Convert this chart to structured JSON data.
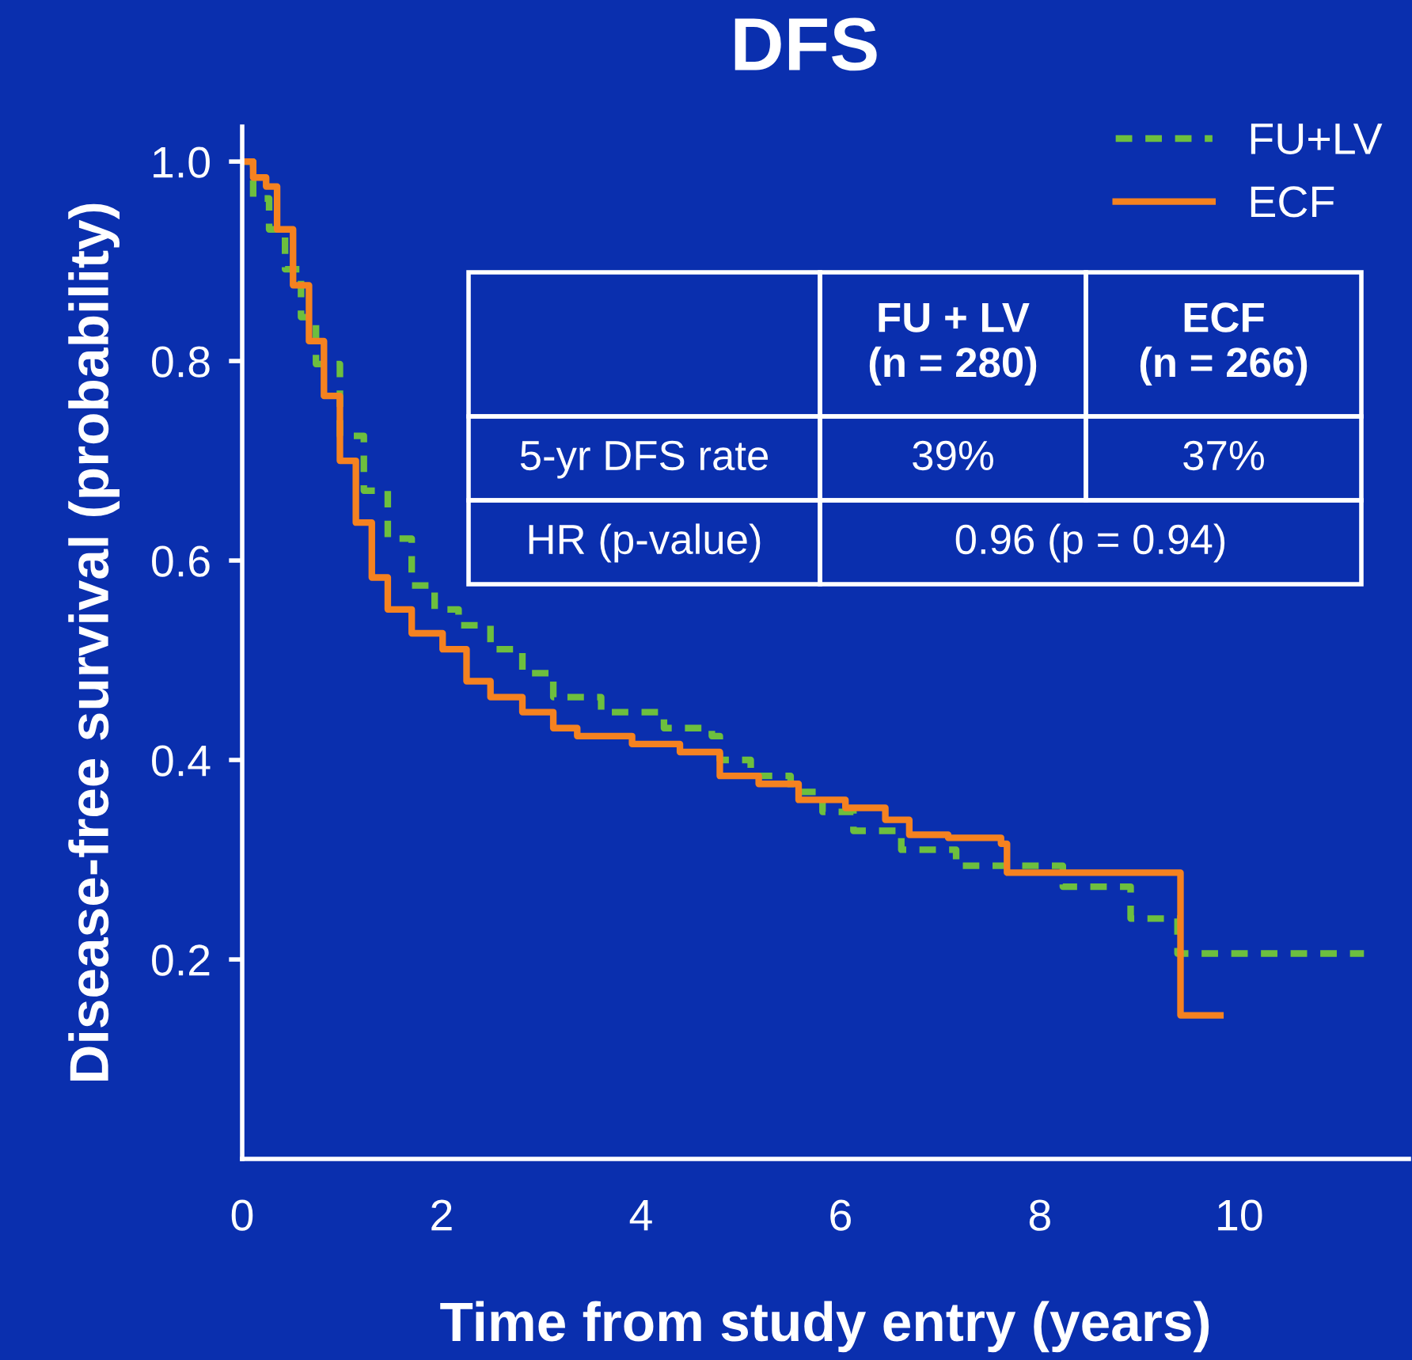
{
  "chart_data": {
    "type": "step",
    "title": "DFS",
    "xlabel": "Time from study entry (years)",
    "ylabel": "Disease-free survival (probability)",
    "xlim": [
      0,
      11.7
    ],
    "xticks": [
      0,
      2,
      4,
      6,
      8,
      10
    ],
    "ylim": [
      0,
      1.035
    ],
    "yticks": [
      0.2,
      0.4,
      0.6,
      0.8,
      {
        "value": 1,
        "label": "1.0"
      }
    ],
    "legend": "top right",
    "grid": false,
    "series": [
      {
        "name": "FU+LV",
        "color": "#6dbf3e",
        "line_style": "dashed",
        "x": [
          0,
          0.11,
          0.27,
          0.43,
          0.59,
          0.74,
          0.98,
          1.22,
          1.46,
          1.7,
          1.93,
          2.17,
          2.49,
          2.81,
          3.12,
          3.6,
          4.23,
          4.71,
          4.79,
          5.1,
          5.5,
          5.82,
          6.13,
          6.61,
          7.16,
          8.23,
          8.91,
          9.38,
          11.25
        ],
        "values": [
          1.0,
          0.963,
          0.932,
          0.892,
          0.844,
          0.797,
          0.725,
          0.67,
          0.622,
          0.575,
          0.551,
          0.535,
          0.511,
          0.487,
          0.463,
          0.448,
          0.432,
          0.424,
          0.4,
          0.384,
          0.368,
          0.348,
          0.329,
          0.31,
          0.294,
          0.273,
          0.241,
          0.206,
          0.206
        ]
      },
      {
        "name": "ECF",
        "color": "#f58220",
        "line_style": "solid",
        "x": [
          0,
          0.11,
          0.24,
          0.35,
          0.51,
          0.67,
          0.82,
          0.98,
          1.14,
          1.3,
          1.46,
          1.7,
          2.01,
          2.25,
          2.49,
          2.81,
          3.12,
          3.36,
          3.91,
          4.39,
          4.79,
          5.18,
          5.58,
          6.05,
          6.45,
          6.69,
          7.08,
          7.61,
          7.67,
          9.41,
          9.81
        ],
        "values": [
          1.0,
          0.984,
          0.975,
          0.932,
          0.876,
          0.82,
          0.765,
          0.7,
          0.638,
          0.583,
          0.551,
          0.527,
          0.511,
          0.479,
          0.463,
          0.448,
          0.432,
          0.424,
          0.416,
          0.408,
          0.384,
          0.376,
          0.36,
          0.352,
          0.34,
          0.325,
          0.322,
          0.316,
          0.287,
          0.144,
          0.144
        ]
      }
    ],
    "annotations": [
      "FU + LV\n(n = 280)",
      "ECF\n(n = 266)",
      "5-yr DFS rate",
      "39%",
      "37%",
      "HR (p-value)",
      "0.96 (p = 0.94)"
    ]
  }
}
